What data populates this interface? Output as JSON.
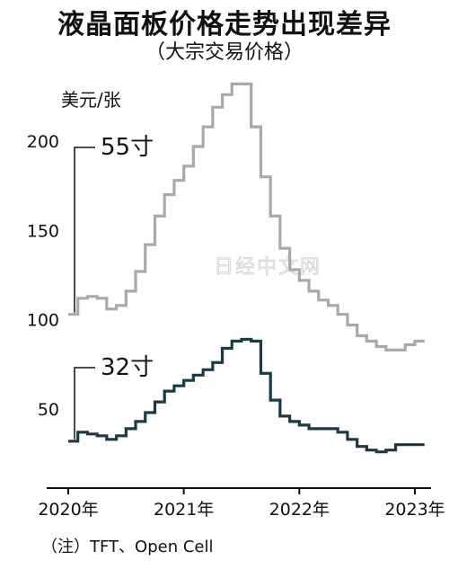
{
  "title": "液晶面板价格走势出现差异",
  "subtitle": "（大宗交易价格）",
  "note": "（注）TFT、Open Cell",
  "watermark": "日经中文网",
  "chart_data": {
    "type": "line",
    "ylabel": "美元/张",
    "ylim": [
      30,
      235
    ],
    "xlim": [
      2020.0,
      2023.1
    ],
    "y_ticks": [
      50,
      100,
      150,
      200
    ],
    "x_ticks": [
      {
        "value": 2020,
        "label": "2020年"
      },
      {
        "value": 2021,
        "label": "2021年"
      },
      {
        "value": 2022,
        "label": "2022年"
      },
      {
        "value": 2023,
        "label": "2023年"
      }
    ],
    "colors": {
      "55寸": "#a9a9a9",
      "32寸": "#1b3a44",
      "axis": "#111111"
    },
    "series": [
      {
        "name": "55寸",
        "x": [
          2020.0,
          2020.083,
          2020.167,
          2020.25,
          2020.333,
          2020.417,
          2020.5,
          2020.583,
          2020.667,
          2020.75,
          2020.833,
          2020.917,
          2021.0,
          2021.083,
          2021.167,
          2021.25,
          2021.333,
          2021.417,
          2021.5,
          2021.583,
          2021.667,
          2021.75,
          2021.833,
          2021.917,
          2022.0,
          2022.083,
          2022.167,
          2022.25,
          2022.333,
          2022.417,
          2022.5,
          2022.583,
          2022.667,
          2022.75,
          2022.833,
          2022.917,
          2023.0
        ],
        "values": [
          103,
          112,
          113,
          112,
          106,
          108,
          116,
          127,
          142,
          158,
          170,
          178,
          186,
          197,
          208,
          219,
          226,
          232,
          232,
          208,
          180,
          158,
          140,
          128,
          122,
          116,
          111,
          108,
          103,
          97,
          91,
          88,
          85,
          83,
          83,
          86,
          88
        ]
      },
      {
        "name": "32寸",
        "x": [
          2020.0,
          2020.083,
          2020.167,
          2020.25,
          2020.333,
          2020.417,
          2020.5,
          2020.583,
          2020.667,
          2020.75,
          2020.833,
          2020.917,
          2021.0,
          2021.083,
          2021.167,
          2021.25,
          2021.333,
          2021.417,
          2021.5,
          2021.583,
          2021.667,
          2021.75,
          2021.833,
          2021.917,
          2022.0,
          2022.083,
          2022.167,
          2022.25,
          2022.333,
          2022.417,
          2022.5,
          2022.583,
          2022.667,
          2022.75,
          2022.833,
          2022.917,
          2023.0
        ],
        "values": [
          32,
          37,
          36,
          35,
          33,
          35,
          39,
          43,
          48,
          54,
          60,
          63,
          66,
          69,
          72,
          76,
          84,
          88,
          89,
          88,
          70,
          55,
          46,
          43,
          41,
          39,
          39,
          39,
          37,
          33,
          29,
          27,
          26,
          27,
          30,
          30,
          30
        ]
      }
    ]
  }
}
